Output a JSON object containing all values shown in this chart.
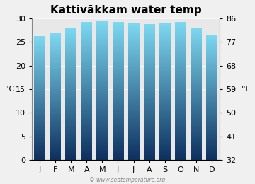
{
  "title": "Kattivākkam water temp",
  "months": [
    "J",
    "F",
    "M",
    "A",
    "M",
    "J",
    "J",
    "A",
    "S",
    "O",
    "N",
    "D"
  ],
  "values_c": [
    26.2,
    26.8,
    28.0,
    29.2,
    29.3,
    29.2,
    28.9,
    28.7,
    28.8,
    29.2,
    28.0,
    26.5
  ],
  "ylabel_left": "°C",
  "ylabel_right": "°F",
  "yticks_c": [
    0,
    5,
    10,
    15,
    20,
    25,
    30
  ],
  "yticks_f": [
    32,
    41,
    50,
    59,
    68,
    77,
    86
  ],
  "ylim_c": [
    0,
    30
  ],
  "bar_color_top": "#7dd8f0",
  "bar_color_bottom": "#0d3060",
  "background_color": "#f0f0f0",
  "plot_bg_color": "#e8e8e8",
  "title_fontsize": 11,
  "axis_fontsize": 8,
  "watermark": "© www.seatemperature.org"
}
